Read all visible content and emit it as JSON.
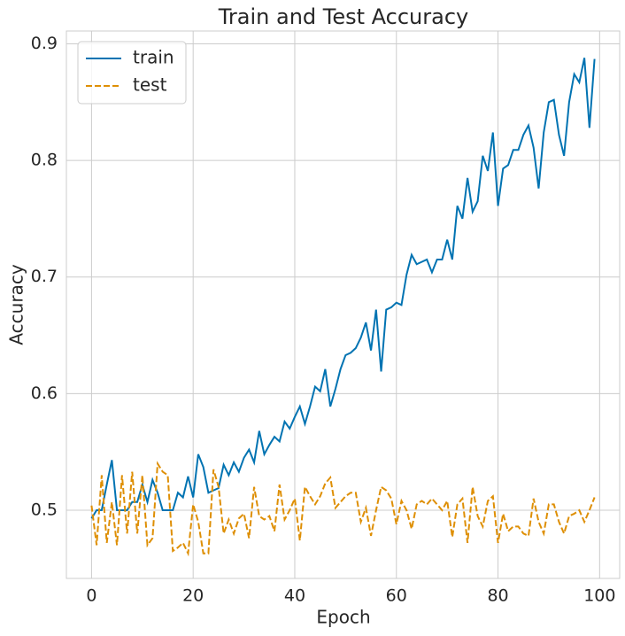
{
  "chart_data": {
    "type": "line",
    "title": "Train and Test Accuracy",
    "x_label": "Epoch",
    "y_label": "Accuracy",
    "x": [
      0,
      1,
      2,
      3,
      4,
      5,
      6,
      7,
      8,
      9,
      10,
      11,
      12,
      13,
      14,
      15,
      16,
      17,
      18,
      19,
      20,
      21,
      22,
      23,
      24,
      25,
      26,
      27,
      28,
      29,
      30,
      31,
      32,
      33,
      34,
      35,
      36,
      37,
      38,
      39,
      40,
      41,
      42,
      43,
      44,
      45,
      46,
      47,
      48,
      49,
      50,
      51,
      52,
      53,
      54,
      55,
      56,
      57,
      58,
      59,
      60,
      61,
      62,
      63,
      64,
      65,
      66,
      67,
      68,
      69,
      70,
      71,
      72,
      73,
      74,
      75,
      76,
      77,
      78,
      79,
      80,
      81,
      82,
      83,
      84,
      85,
      86,
      87,
      88,
      89,
      90,
      91,
      92,
      93,
      94,
      95,
      96,
      97,
      98,
      99
    ],
    "series": [
      {
        "name": "train",
        "color": "#0173b2",
        "dash": "solid",
        "values": [
          0.493,
          0.5,
          0.5,
          0.522,
          0.543,
          0.5,
          0.5,
          0.5,
          0.507,
          0.507,
          0.522,
          0.507,
          0.526,
          0.515,
          0.5,
          0.5,
          0.5,
          0.515,
          0.511,
          0.529,
          0.511,
          0.548,
          0.537,
          0.515,
          0.517,
          0.519,
          0.539,
          0.53,
          0.541,
          0.533,
          0.545,
          0.552,
          0.541,
          0.568,
          0.548,
          0.556,
          0.563,
          0.559,
          0.576,
          0.57,
          0.58,
          0.589,
          0.574,
          0.589,
          0.606,
          0.602,
          0.621,
          0.589,
          0.604,
          0.621,
          0.633,
          0.635,
          0.639,
          0.648,
          0.661,
          0.637,
          0.672,
          0.619,
          0.672,
          0.674,
          0.678,
          0.676,
          0.702,
          0.719,
          0.711,
          0.713,
          0.715,
          0.704,
          0.715,
          0.715,
          0.732,
          0.715,
          0.761,
          0.75,
          0.785,
          0.756,
          0.765,
          0.804,
          0.791,
          0.824,
          0.761,
          0.793,
          0.796,
          0.809,
          0.809,
          0.822,
          0.83,
          0.811,
          0.776,
          0.824,
          0.85,
          0.852,
          0.822,
          0.804,
          0.85,
          0.874,
          0.867,
          0.888,
          0.828,
          0.887
        ]
      },
      {
        "name": "test",
        "color": "#de8f05",
        "dash": "dashed",
        "values": [
          0.504,
          0.47,
          0.53,
          0.472,
          0.507,
          0.47,
          0.53,
          0.48,
          0.533,
          0.48,
          0.53,
          0.47,
          0.476,
          0.54,
          0.533,
          0.53,
          0.465,
          0.468,
          0.472,
          0.463,
          0.505,
          0.49,
          0.463,
          0.463,
          0.535,
          0.52,
          0.48,
          0.492,
          0.48,
          0.493,
          0.497,
          0.476,
          0.52,
          0.495,
          0.492,
          0.495,
          0.482,
          0.522,
          0.492,
          0.5,
          0.51,
          0.474,
          0.52,
          0.512,
          0.505,
          0.512,
          0.523,
          0.528,
          0.502,
          0.507,
          0.512,
          0.515,
          0.515,
          0.49,
          0.502,
          0.478,
          0.5,
          0.52,
          0.517,
          0.51,
          0.488,
          0.508,
          0.5,
          0.484,
          0.505,
          0.508,
          0.505,
          0.51,
          0.505,
          0.5,
          0.508,
          0.477,
          0.505,
          0.51,
          0.472,
          0.52,
          0.495,
          0.486,
          0.508,
          0.512,
          0.472,
          0.497,
          0.482,
          0.486,
          0.486,
          0.48,
          0.478,
          0.51,
          0.49,
          0.48,
          0.505,
          0.505,
          0.49,
          0.48,
          0.495,
          0.497,
          0.5,
          0.49,
          0.5,
          0.511
        ]
      }
    ],
    "xlim": [
      -4.95,
      103.95
    ],
    "ylim": [
      0.4415,
      0.911
    ],
    "xticks": [
      0,
      20,
      40,
      60,
      80,
      100
    ],
    "yticks": [
      0.5,
      0.6,
      0.7,
      0.8,
      0.9
    ],
    "grid": true,
    "legend": "upper left"
  }
}
